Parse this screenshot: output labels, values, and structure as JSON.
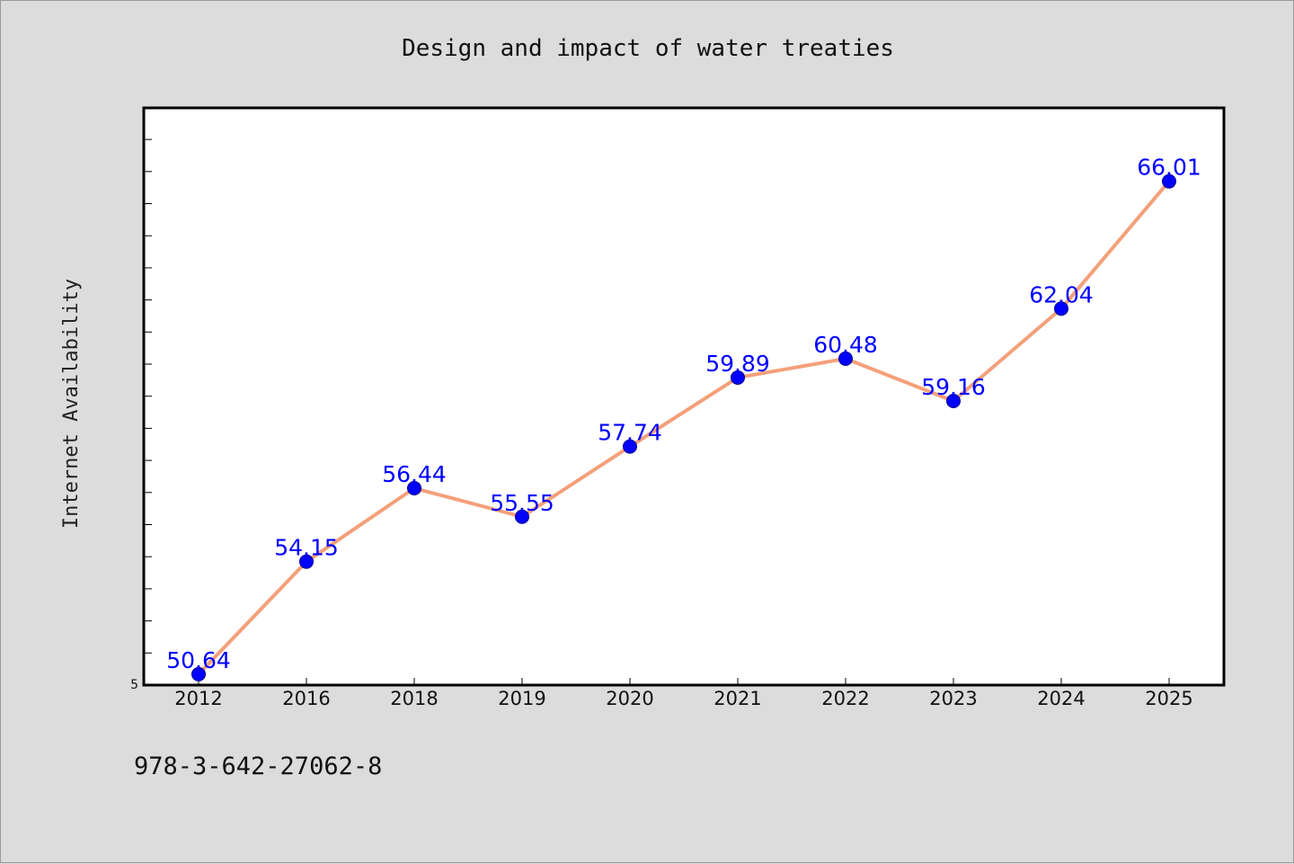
{
  "chart_data": {
    "type": "line",
    "title": "Design and impact of water treaties",
    "xlabel": "",
    "ylabel": "Internet Availability",
    "categories": [
      "2012",
      "2016",
      "2018",
      "2019",
      "2020",
      "2021",
      "2022",
      "2023",
      "2024",
      "2025"
    ],
    "series": [
      {
        "values": [
          50.64,
          54.15,
          56.44,
          55.55,
          57.74,
          59.89,
          60.48,
          59.16,
          62.04,
          66.01
        ]
      }
    ],
    "data_labels": [
      "50.64",
      "54.15",
      "56.44",
      "55.55",
      "57.74",
      "59.89",
      "60.48",
      "59.16",
      "62.04",
      "66.01"
    ],
    "y_tick_label_visible": "5",
    "ylim": [
      50.3,
      68.3
    ],
    "grid": false,
    "legend": "none",
    "colors": {
      "line": "#f4a07a",
      "marker": "#0000ff",
      "label": "#0000ff",
      "background": "#dcdcdc",
      "plot": "#ffffff"
    }
  },
  "footnote": "978-3-642-27062-8"
}
